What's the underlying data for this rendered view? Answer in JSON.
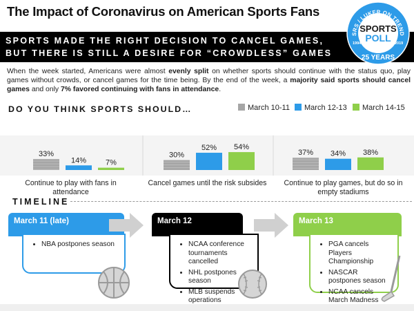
{
  "title": "The Impact of Coronavirus on American Sports Fans",
  "logo": {
    "arc_text": "SSRS / LUKER ON TRENDS",
    "line1": "SPORTS",
    "line2": "POLL",
    "year_left": "1994",
    "year_right": "2019",
    "anniversary": "25 YEARS"
  },
  "banner": {
    "line1": "SPORTS MADE THE RIGHT DECISION TO CANCEL GAMES,",
    "line2": "BUT THERE IS STILL A DESIRE FOR “CROWDLESS” GAMES"
  },
  "intro": {
    "p1": "When the week started, Americans were almost ",
    "p2": "evenly split",
    "p3": " on whether sports should continue with the status quo, play games without crowds, or cancel games for the time being. By the end of the week, a ",
    "p4": "majority said sports should cancel games",
    "p5": " and only ",
    "p6": "7% favored continuing with fans in attendance",
    "p7": "."
  },
  "question": "DO YOU THINK SPORTS SHOULD…",
  "colors": {
    "accent_blue": "#2d9be8",
    "accent_green": "#8fcf4a",
    "black": "#000000",
    "gray": "#a6a6a6"
  },
  "chart_data": {
    "type": "bar",
    "categories": [
      "Continue to play with fans in attendance",
      "Cancel games until the risk subsides",
      "Continue to play games, but do so in empty stadiums"
    ],
    "series": [
      {
        "name": "March 10-11",
        "values": [
          33,
          30,
          37
        ],
        "labels": [
          "33%",
          "30%",
          "37%"
        ],
        "color": "#a6a6a6"
      },
      {
        "name": "March 12-13",
        "values": [
          14,
          52,
          34
        ],
        "labels": [
          "14%",
          "52%",
          "34%"
        ],
        "color": "#2d9be8"
      },
      {
        "name": "March 14-15",
        "values": [
          7,
          54,
          38
        ],
        "labels": [
          "7%",
          "54%",
          "38%"
        ],
        "color": "#8fcf4a"
      }
    ],
    "ylim": [
      0,
      60
    ],
    "grid": false,
    "legend": "top-right"
  },
  "category_labels": {
    "c1": "Continue to play with fans in attendance",
    "c2": "Cancel games until the risk subsides",
    "c3a": "Continue to play games, but do so in",
    "c3b": "empty stadiums"
  },
  "timeline": {
    "title": "TIMELINE",
    "cards": [
      {
        "date": "March 11 (late)",
        "items": [
          "NBA postpones season"
        ],
        "icon": "basketball-icon"
      },
      {
        "date": "March 12",
        "items": [
          "NCAA conference tournaments cancelled",
          "NHL postpones season",
          "MLB suspends operations"
        ],
        "icon": "baseball-icon"
      },
      {
        "date": "March 13",
        "items": [
          "PGA cancels Players Championship",
          "NASCAR postpones season",
          "NCAA cancels March Madness"
        ],
        "icon": "golf-club-icon"
      }
    ]
  }
}
